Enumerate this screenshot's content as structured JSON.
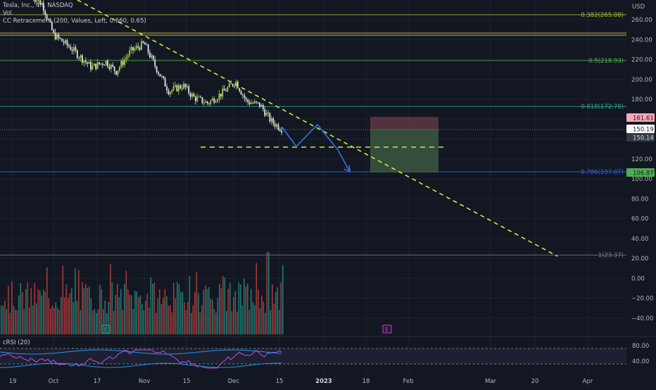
{
  "legend": {
    "symbol": "Tesla, Inc., 4h, NASDAQ",
    "vol_label": "Vol",
    "indicator": "CC Retracement (200, Values, Left, 0.660, 0.65)"
  },
  "price_axis": {
    "currency": "USD",
    "ticks": [
      "260.00",
      "240.00",
      "220.00",
      "200.00",
      "180.00",
      "160.00",
      "140.00",
      "120.00",
      "100.00",
      "80.00",
      "60.00",
      "40.00",
      "20.00",
      "0.00",
      "−20.00",
      "−40.00"
    ]
  },
  "price_badges": {
    "stop": "161.61",
    "last": "150.19",
    "prev": "150.14",
    "target": "106.87"
  },
  "fib_levels": [
    {
      "label": "0.382(265.08)",
      "price": 265.08,
      "color": "#a5b832"
    },
    {
      "label": "0.5(218.93)",
      "price": 218.93,
      "color": "#4caf50"
    },
    {
      "label": "0.618(172.78)",
      "price": 172.78,
      "color": "#26a69a"
    },
    {
      "label": "0.786(107.07)",
      "price": 107.07,
      "color": "#2962ff"
    },
    {
      "label": "1(23.37)",
      "price": 23.37,
      "color": "#787b86"
    }
  ],
  "time_axis": [
    "19",
    "Oct",
    "17",
    "Nov",
    "15",
    "Dec",
    "15",
    "2023",
    "18",
    "Feb",
    "Mar",
    "20",
    "Apr"
  ],
  "crsi": {
    "label": "cRSI (20)",
    "ticks": [
      "80.00",
      "40.00"
    ],
    "bands": [
      70,
      30
    ]
  },
  "earnings_markers": [
    "E",
    "E"
  ],
  "colors": {
    "bg": "#131722",
    "up": "#26a69a",
    "down": "#ef5350",
    "candle_up": "#a5d63c",
    "candle_down": "#e0e3eb",
    "trend": "#c6ef3d",
    "projection": "#2962ff"
  }
}
